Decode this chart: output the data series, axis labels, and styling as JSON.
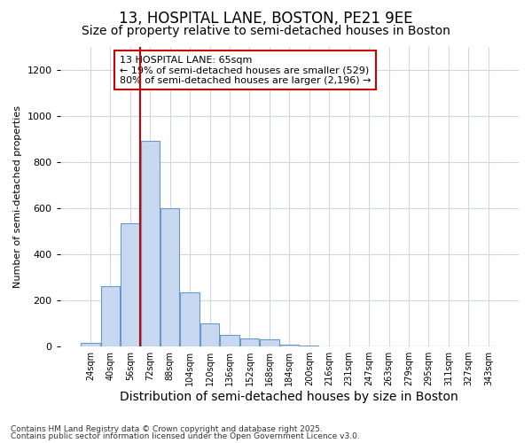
{
  "title_line1": "13, HOSPITAL LANE, BOSTON, PE21 9EE",
  "title_line2": "Size of property relative to semi-detached houses in Boston",
  "xlabel": "Distribution of semi-detached houses by size in Boston",
  "ylabel": "Number of semi-detached properties",
  "categories": [
    "24sqm",
    "40sqm",
    "56sqm",
    "72sqm",
    "88sqm",
    "104sqm",
    "120sqm",
    "136sqm",
    "152sqm",
    "168sqm",
    "184sqm",
    "200sqm",
    "216sqm",
    "231sqm",
    "247sqm",
    "263sqm",
    "279sqm",
    "295sqm",
    "311sqm",
    "327sqm",
    "343sqm"
  ],
  "values": [
    15,
    260,
    535,
    890,
    600,
    235,
    100,
    50,
    35,
    30,
    10,
    5,
    0,
    0,
    0,
    0,
    0,
    0,
    0,
    0,
    0
  ],
  "bar_color": "#c8d8f0",
  "bar_edgecolor": "#6699cc",
  "vline_color": "#cc0000",
  "annotation_text": "13 HOSPITAL LANE: 65sqm\n← 19% of semi-detached houses are smaller (529)\n80% of semi-detached houses are larger (2,196) →",
  "annotation_box_color": "white",
  "annotation_box_edgecolor": "#cc0000",
  "footnote1": "Contains HM Land Registry data © Crown copyright and database right 2025.",
  "footnote2": "Contains public sector information licensed under the Open Government Licence v3.0.",
  "ylim": [
    0,
    1300
  ],
  "yticks": [
    0,
    200,
    400,
    600,
    800,
    1000,
    1200
  ],
  "bg_color": "#ffffff",
  "plot_bg_color": "#ffffff",
  "grid_color": "#d0d8e8",
  "title_fontsize": 12,
  "subtitle_fontsize": 10,
  "ylabel_fontsize": 8,
  "xlabel_fontsize": 10
}
